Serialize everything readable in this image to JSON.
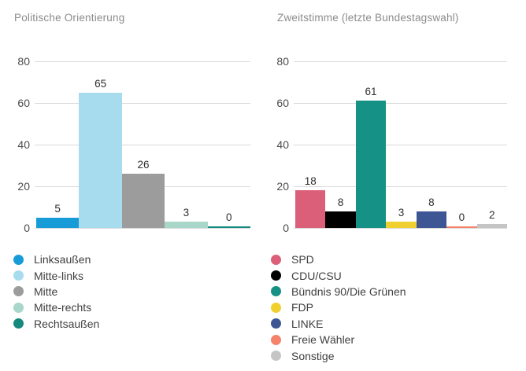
{
  "chart_data": [
    {
      "type": "bar",
      "title": "Politische Orientierung",
      "categories": [
        "Linksaußen",
        "Mitte-links",
        "Mitte",
        "Mitte-rechts",
        "Rechtsaußen"
      ],
      "values": [
        5,
        65,
        26,
        3,
        0
      ],
      "colors": [
        "#189cd8",
        "#a7dcee",
        "#9c9c9c",
        "#a8d6c8",
        "#15897e"
      ],
      "ylim": [
        0,
        80
      ],
      "y_ticks": [
        80,
        60,
        40,
        20,
        0
      ],
      "xlabel": "",
      "ylabel": "",
      "grid": true,
      "value_labels": true,
      "legend_position": "bottom",
      "legend": [
        "Linksaußen",
        "Mitte-links",
        "Mitte",
        "Mitte-rechts",
        "Rechtsaußen"
      ]
    },
    {
      "type": "bar",
      "title": "Zweitstimme (letzte Bundestagswahl)",
      "categories": [
        "SPD",
        "CDU/CSU",
        "Bündnis 90/Die Grünen",
        "FDP",
        "LINKE",
        "Freie Wähler",
        "Sonstige"
      ],
      "values": [
        18,
        8,
        61,
        3,
        8,
        0,
        2
      ],
      "colors": [
        "#db5f78",
        "#000000",
        "#169185",
        "#efd02f",
        "#3e5693",
        "#f5836c",
        "#c5c5c5"
      ],
      "ylim": [
        0,
        80
      ],
      "y_ticks": [
        80,
        60,
        40,
        20,
        0
      ],
      "xlabel": "",
      "ylabel": "",
      "grid": true,
      "value_labels": true,
      "legend_position": "bottom",
      "legend": [
        "SPD",
        "CDU/CSU",
        "Bündnis 90/Die Grünen",
        "FDP",
        "LINKE",
        "Freie Wähler",
        "Sonstige"
      ]
    }
  ],
  "layout": {
    "gridline_color": "#d9d9d9",
    "tick_color": "#4c4c4c",
    "title_color": "#8b8b8b",
    "value_label_color": "#2d2d2d",
    "legend_label_color": "#3f3f3f"
  }
}
